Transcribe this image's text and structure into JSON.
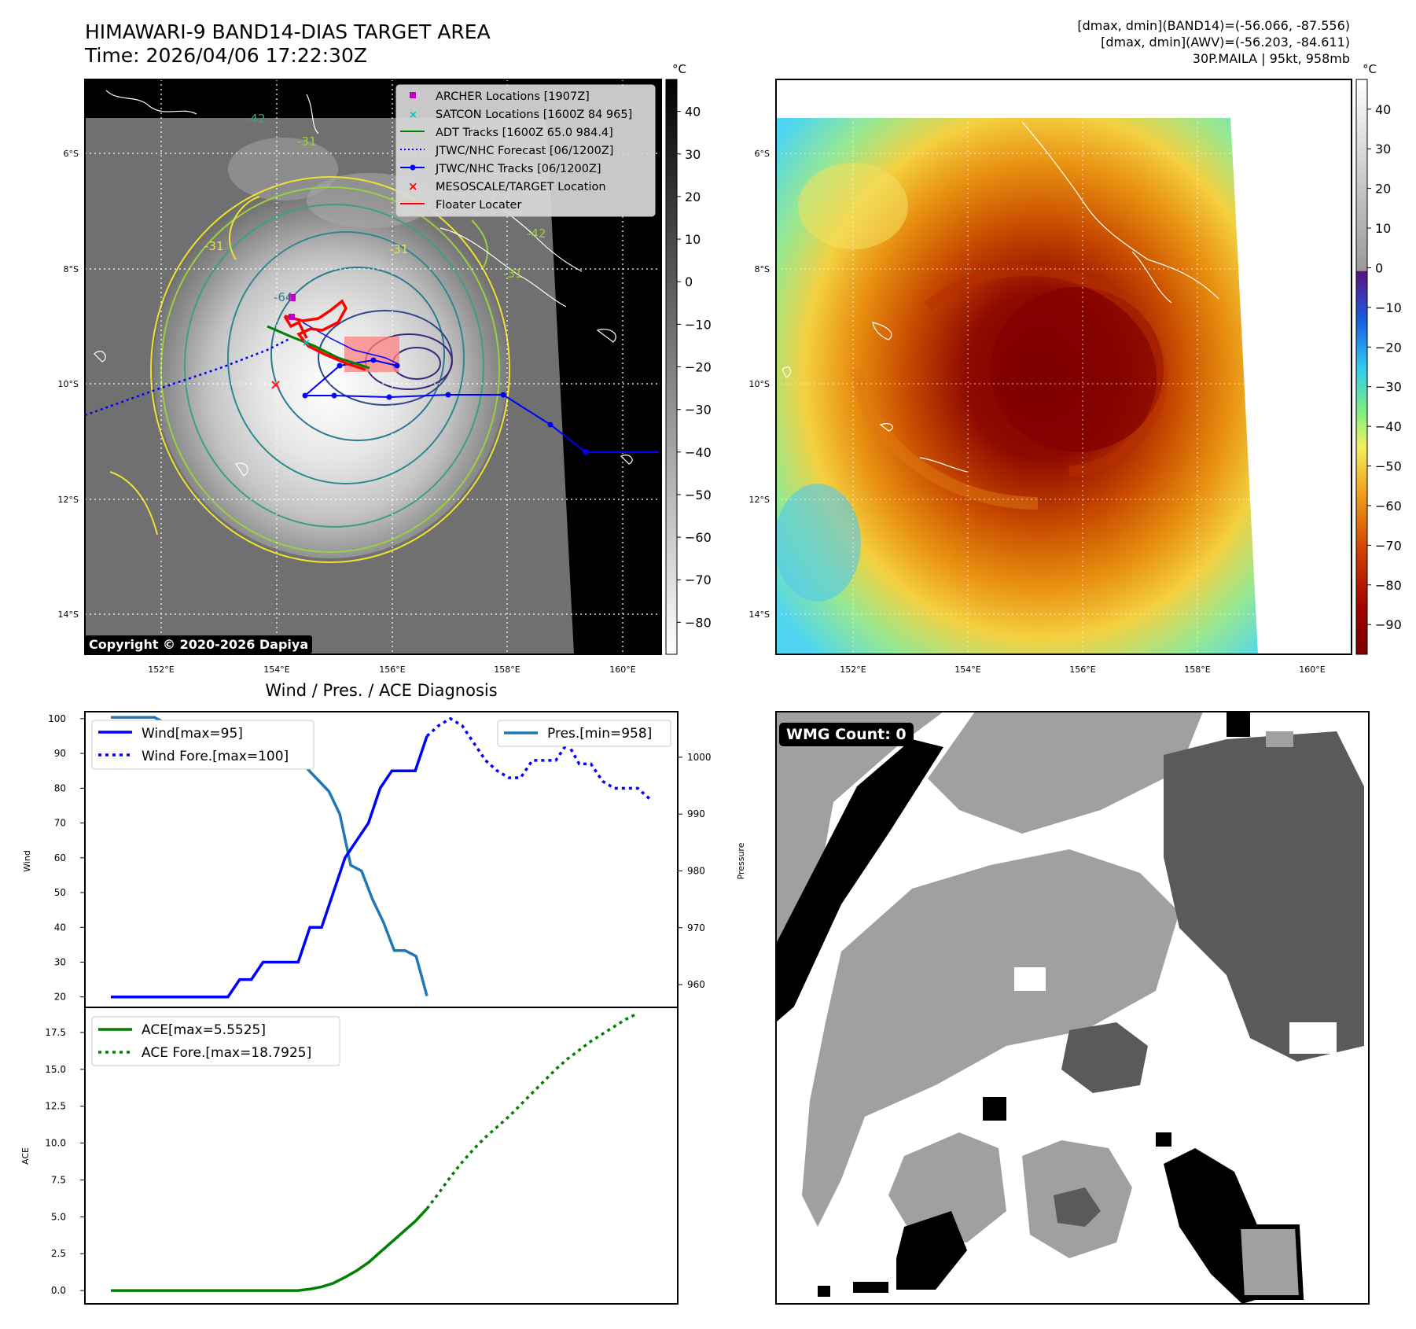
{
  "header": {
    "title_line1": "HIMAWARI-9 BAND14-DIAS TARGET AREA",
    "title_line2": "Time: 2026/04/06 17:22:30Z",
    "info_line1": "[dmax, dmin](BAND14)=(-56.066, -87.556)",
    "info_line2": "[dmax, dmin](AWV)=(-56.203, -84.611)",
    "info_line3": "30P.MAILA | 95kt, 958mb"
  },
  "map_left": {
    "lat_labels": [
      "6°S",
      "8°S",
      "10°S",
      "12°S",
      "14°S"
    ],
    "lon_labels": [
      "152°E",
      "154°E",
      "156°E",
      "158°E",
      "160°E"
    ],
    "contour_labels": [
      "-64",
      "-42",
      "-31",
      "-31",
      "-31",
      "-42",
      "-31"
    ],
    "copyright": "Copyright © 2020-2026 Dapiya",
    "legend": [
      {
        "label": "ARCHER Locations [1907Z]",
        "color": "#c000c0"
      },
      {
        "label": "SATCON Locations [1600Z 84 965]",
        "color": "#00c0c0"
      },
      {
        "label": "ADT Tracks [1600Z 65.0 984.4]",
        "color": "#008000"
      },
      {
        "label": "JTWC/NHC Forecast [06/1200Z]",
        "color": "#0000ff"
      },
      {
        "label": "JTWC/NHC Tracks [06/1200Z]",
        "color": "#0000ff"
      },
      {
        "label": "MESOSCALE/TARGET Location",
        "color": "#ff0000"
      },
      {
        "label": "Floater Locater",
        "color": "#ff0000"
      }
    ],
    "colorbar_unit": "°C",
    "colorbar_ticks": [
      "40",
      "30",
      "20",
      "10",
      "0",
      "−10",
      "−20",
      "−30",
      "−40",
      "−50",
      "−60",
      "−70",
      "−80"
    ]
  },
  "map_right": {
    "lat_labels": [
      "6°S",
      "8°S",
      "10°S",
      "12°S",
      "14°S"
    ],
    "lon_labels": [
      "152°E",
      "154°E",
      "156°E",
      "158°E",
      "160°E"
    ],
    "colorbar_unit": "°C",
    "colorbar_ticks": [
      "40",
      "30",
      "20",
      "10",
      "0",
      "−10",
      "−20",
      "−30",
      "−40",
      "−50",
      "−60",
      "−70",
      "−80",
      "−90"
    ]
  },
  "diagnosis": {
    "title": "Wind / Pres. / ACE Diagnosis",
    "wmg_label": "WMG Count: 0"
  },
  "chart_data": [
    {
      "type": "line",
      "title": "Wind / Pres. / ACE Diagnosis",
      "ylabel": "Wind",
      "ylabel_right": "Pressure",
      "ylim": [
        17,
        102
      ],
      "ylim_right": [
        956,
        1008
      ],
      "yticks": [
        20,
        30,
        40,
        50,
        60,
        70,
        80,
        90,
        100
      ],
      "yticks_right": [
        960,
        970,
        980,
        990,
        1000
      ],
      "series": [
        {
          "name": "Wind[max=95]",
          "color": "#0000ff",
          "style": "solid",
          "axis": "left",
          "values": [
            20,
            20,
            20,
            20,
            20,
            20,
            20,
            20,
            20,
            20,
            20,
            25,
            25,
            30,
            30,
            30,
            30,
            40,
            40,
            50,
            60,
            65,
            70,
            80,
            85,
            85,
            85,
            95
          ]
        },
        {
          "name": "Wind Fore.[max=100]",
          "color": "#0000ff",
          "style": "dotted",
          "axis": "left",
          "values": [
            95,
            98,
            100,
            98,
            93,
            88,
            85,
            83,
            83,
            88,
            88,
            88,
            93,
            87,
            87,
            82,
            80,
            80,
            80,
            77
          ]
        },
        {
          "name": "Pres.[min=958]",
          "color": "#1f77b4",
          "style": "solid",
          "axis": "right",
          "values": [
            1007,
            1007,
            1007,
            1007,
            1007,
            1006,
            1006,
            1006,
            1006,
            1006,
            1005,
            1005,
            1005,
            1004,
            1004,
            1004,
            1004,
            1003,
            998,
            996,
            994,
            990,
            981,
            980,
            975,
            971,
            966,
            966,
            965,
            958
          ]
        }
      ]
    },
    {
      "type": "line",
      "ylabel": "ACE",
      "ylim": [
        -0.9,
        19.2
      ],
      "yticks": [
        0.0,
        2.5,
        5.0,
        7.5,
        10.0,
        12.5,
        15.0,
        17.5
      ],
      "series": [
        {
          "name": "ACE[max=5.5525]",
          "color": "#008000",
          "style": "solid",
          "values": [
            0,
            0,
            0,
            0,
            0,
            0,
            0,
            0,
            0,
            0,
            0,
            0,
            0,
            0,
            0,
            0,
            0,
            0.1,
            0.25,
            0.5,
            0.9,
            1.35,
            1.9,
            2.6,
            3.3,
            4.0,
            4.7,
            5.55
          ]
        },
        {
          "name": "ACE Fore.[max=18.7925]",
          "color": "#008000",
          "style": "dotted",
          "values": [
            5.55,
            6.6,
            7.7,
            8.7,
            9.6,
            10.4,
            11.1,
            11.8,
            12.6,
            13.4,
            14.2,
            15.0,
            15.7,
            16.3,
            16.9,
            17.4,
            17.9,
            18.4,
            18.79
          ]
        }
      ]
    }
  ]
}
